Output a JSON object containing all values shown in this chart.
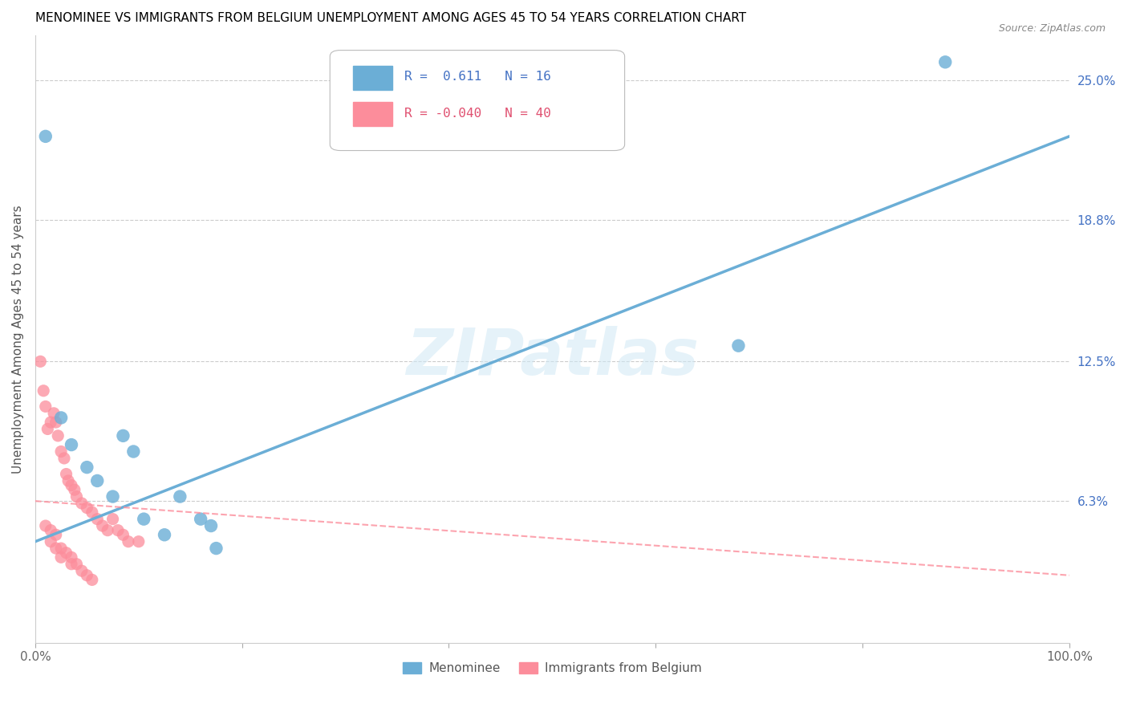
{
  "title": "MENOMINEE VS IMMIGRANTS FROM BELGIUM UNEMPLOYMENT AMONG AGES 45 TO 54 YEARS CORRELATION CHART",
  "source": "Source: ZipAtlas.com",
  "ylabel_label": "Unemployment Among Ages 45 to 54 years",
  "xmin": 0.0,
  "xmax": 100.0,
  "ymin": 0.0,
  "ymax": 27.0,
  "menominee_color": "#6baed6",
  "belgium_color": "#fc8d9b",
  "menominee_R": 0.611,
  "menominee_N": 16,
  "belgium_R": -0.04,
  "belgium_N": 40,
  "legend_label_1": "Menominee",
  "legend_label_2": "Immigrants from Belgium",
  "watermark": "ZIPatlas",
  "ytick_vals": [
    6.3,
    12.5,
    18.8,
    25.0
  ],
  "ytick_labels": [
    "6.3%",
    "12.5%",
    "18.8%",
    "25.0%"
  ],
  "xtick_vals": [
    0,
    100
  ],
  "xtick_labels": [
    "0.0%",
    "100.0%"
  ],
  "menominee_points": [
    [
      1.0,
      22.5
    ],
    [
      2.5,
      10.0
    ],
    [
      3.5,
      8.8
    ],
    [
      5.0,
      7.8
    ],
    [
      6.0,
      7.2
    ],
    [
      7.5,
      6.5
    ],
    [
      8.5,
      9.2
    ],
    [
      9.5,
      8.5
    ],
    [
      10.5,
      5.5
    ],
    [
      12.5,
      4.8
    ],
    [
      14.0,
      6.5
    ],
    [
      16.0,
      5.5
    ],
    [
      17.0,
      5.2
    ],
    [
      17.5,
      4.2
    ],
    [
      68.0,
      13.2
    ],
    [
      88.0,
      25.8
    ]
  ],
  "belgium_points": [
    [
      0.5,
      12.5
    ],
    [
      0.8,
      11.2
    ],
    [
      1.0,
      10.5
    ],
    [
      1.2,
      9.5
    ],
    [
      1.5,
      9.8
    ],
    [
      1.8,
      10.2
    ],
    [
      2.0,
      9.8
    ],
    [
      2.2,
      9.2
    ],
    [
      2.5,
      8.5
    ],
    [
      2.8,
      8.2
    ],
    [
      3.0,
      7.5
    ],
    [
      3.2,
      7.2
    ],
    [
      3.5,
      7.0
    ],
    [
      3.8,
      6.8
    ],
    [
      4.0,
      6.5
    ],
    [
      4.5,
      6.2
    ],
    [
      5.0,
      6.0
    ],
    [
      5.5,
      5.8
    ],
    [
      6.0,
      5.5
    ],
    [
      6.5,
      5.2
    ],
    [
      7.0,
      5.0
    ],
    [
      7.5,
      5.5
    ],
    [
      8.0,
      5.0
    ],
    [
      8.5,
      4.8
    ],
    [
      9.0,
      4.5
    ],
    [
      10.0,
      4.5
    ],
    [
      1.0,
      5.2
    ],
    [
      1.5,
      5.0
    ],
    [
      2.0,
      4.8
    ],
    [
      2.5,
      4.2
    ],
    [
      3.0,
      4.0
    ],
    [
      3.5,
      3.8
    ],
    [
      4.0,
      3.5
    ],
    [
      4.5,
      3.2
    ],
    [
      5.0,
      3.0
    ],
    [
      1.5,
      4.5
    ],
    [
      2.0,
      4.2
    ],
    [
      2.5,
      3.8
    ],
    [
      3.5,
      3.5
    ],
    [
      5.5,
      2.8
    ]
  ],
  "blue_line_x": [
    0.0,
    100.0
  ],
  "blue_line_y": [
    4.5,
    22.5
  ],
  "pink_line_x": [
    0.0,
    100.0
  ],
  "pink_line_y": [
    6.3,
    3.0
  ]
}
